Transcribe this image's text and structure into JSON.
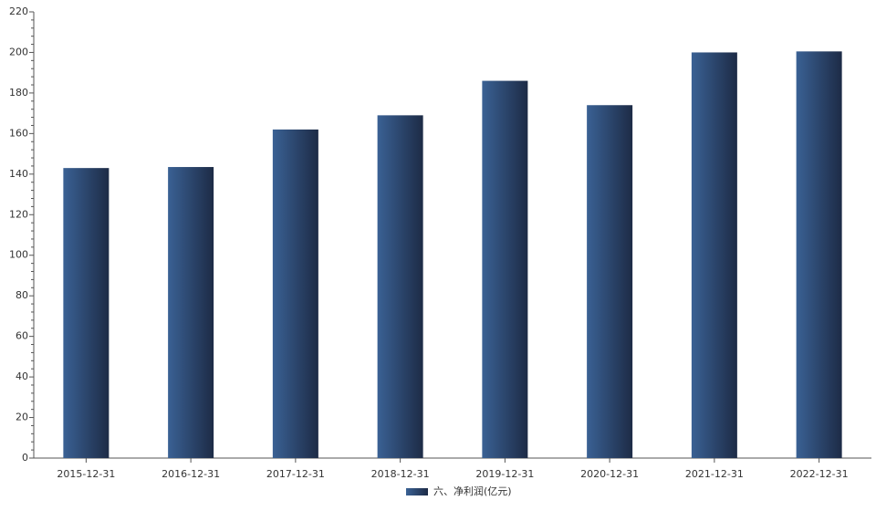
{
  "chart_data": {
    "type": "bar",
    "categories": [
      "2015-12-31",
      "2016-12-31",
      "2017-12-31",
      "2018-12-31",
      "2019-12-31",
      "2020-12-31",
      "2021-12-31",
      "2022-12-31"
    ],
    "series": [
      {
        "name": "六、净利润(亿元)",
        "color": "#3a6194",
        "values": [
          143,
          143.5,
          162,
          169,
          186,
          174,
          200,
          200.5
        ]
      }
    ],
    "ylim": [
      0,
      220
    ],
    "yticks": [
      0,
      20,
      40,
      60,
      80,
      100,
      120,
      140,
      160,
      180,
      200,
      220
    ],
    "grid": false,
    "legend": "bottom"
  }
}
